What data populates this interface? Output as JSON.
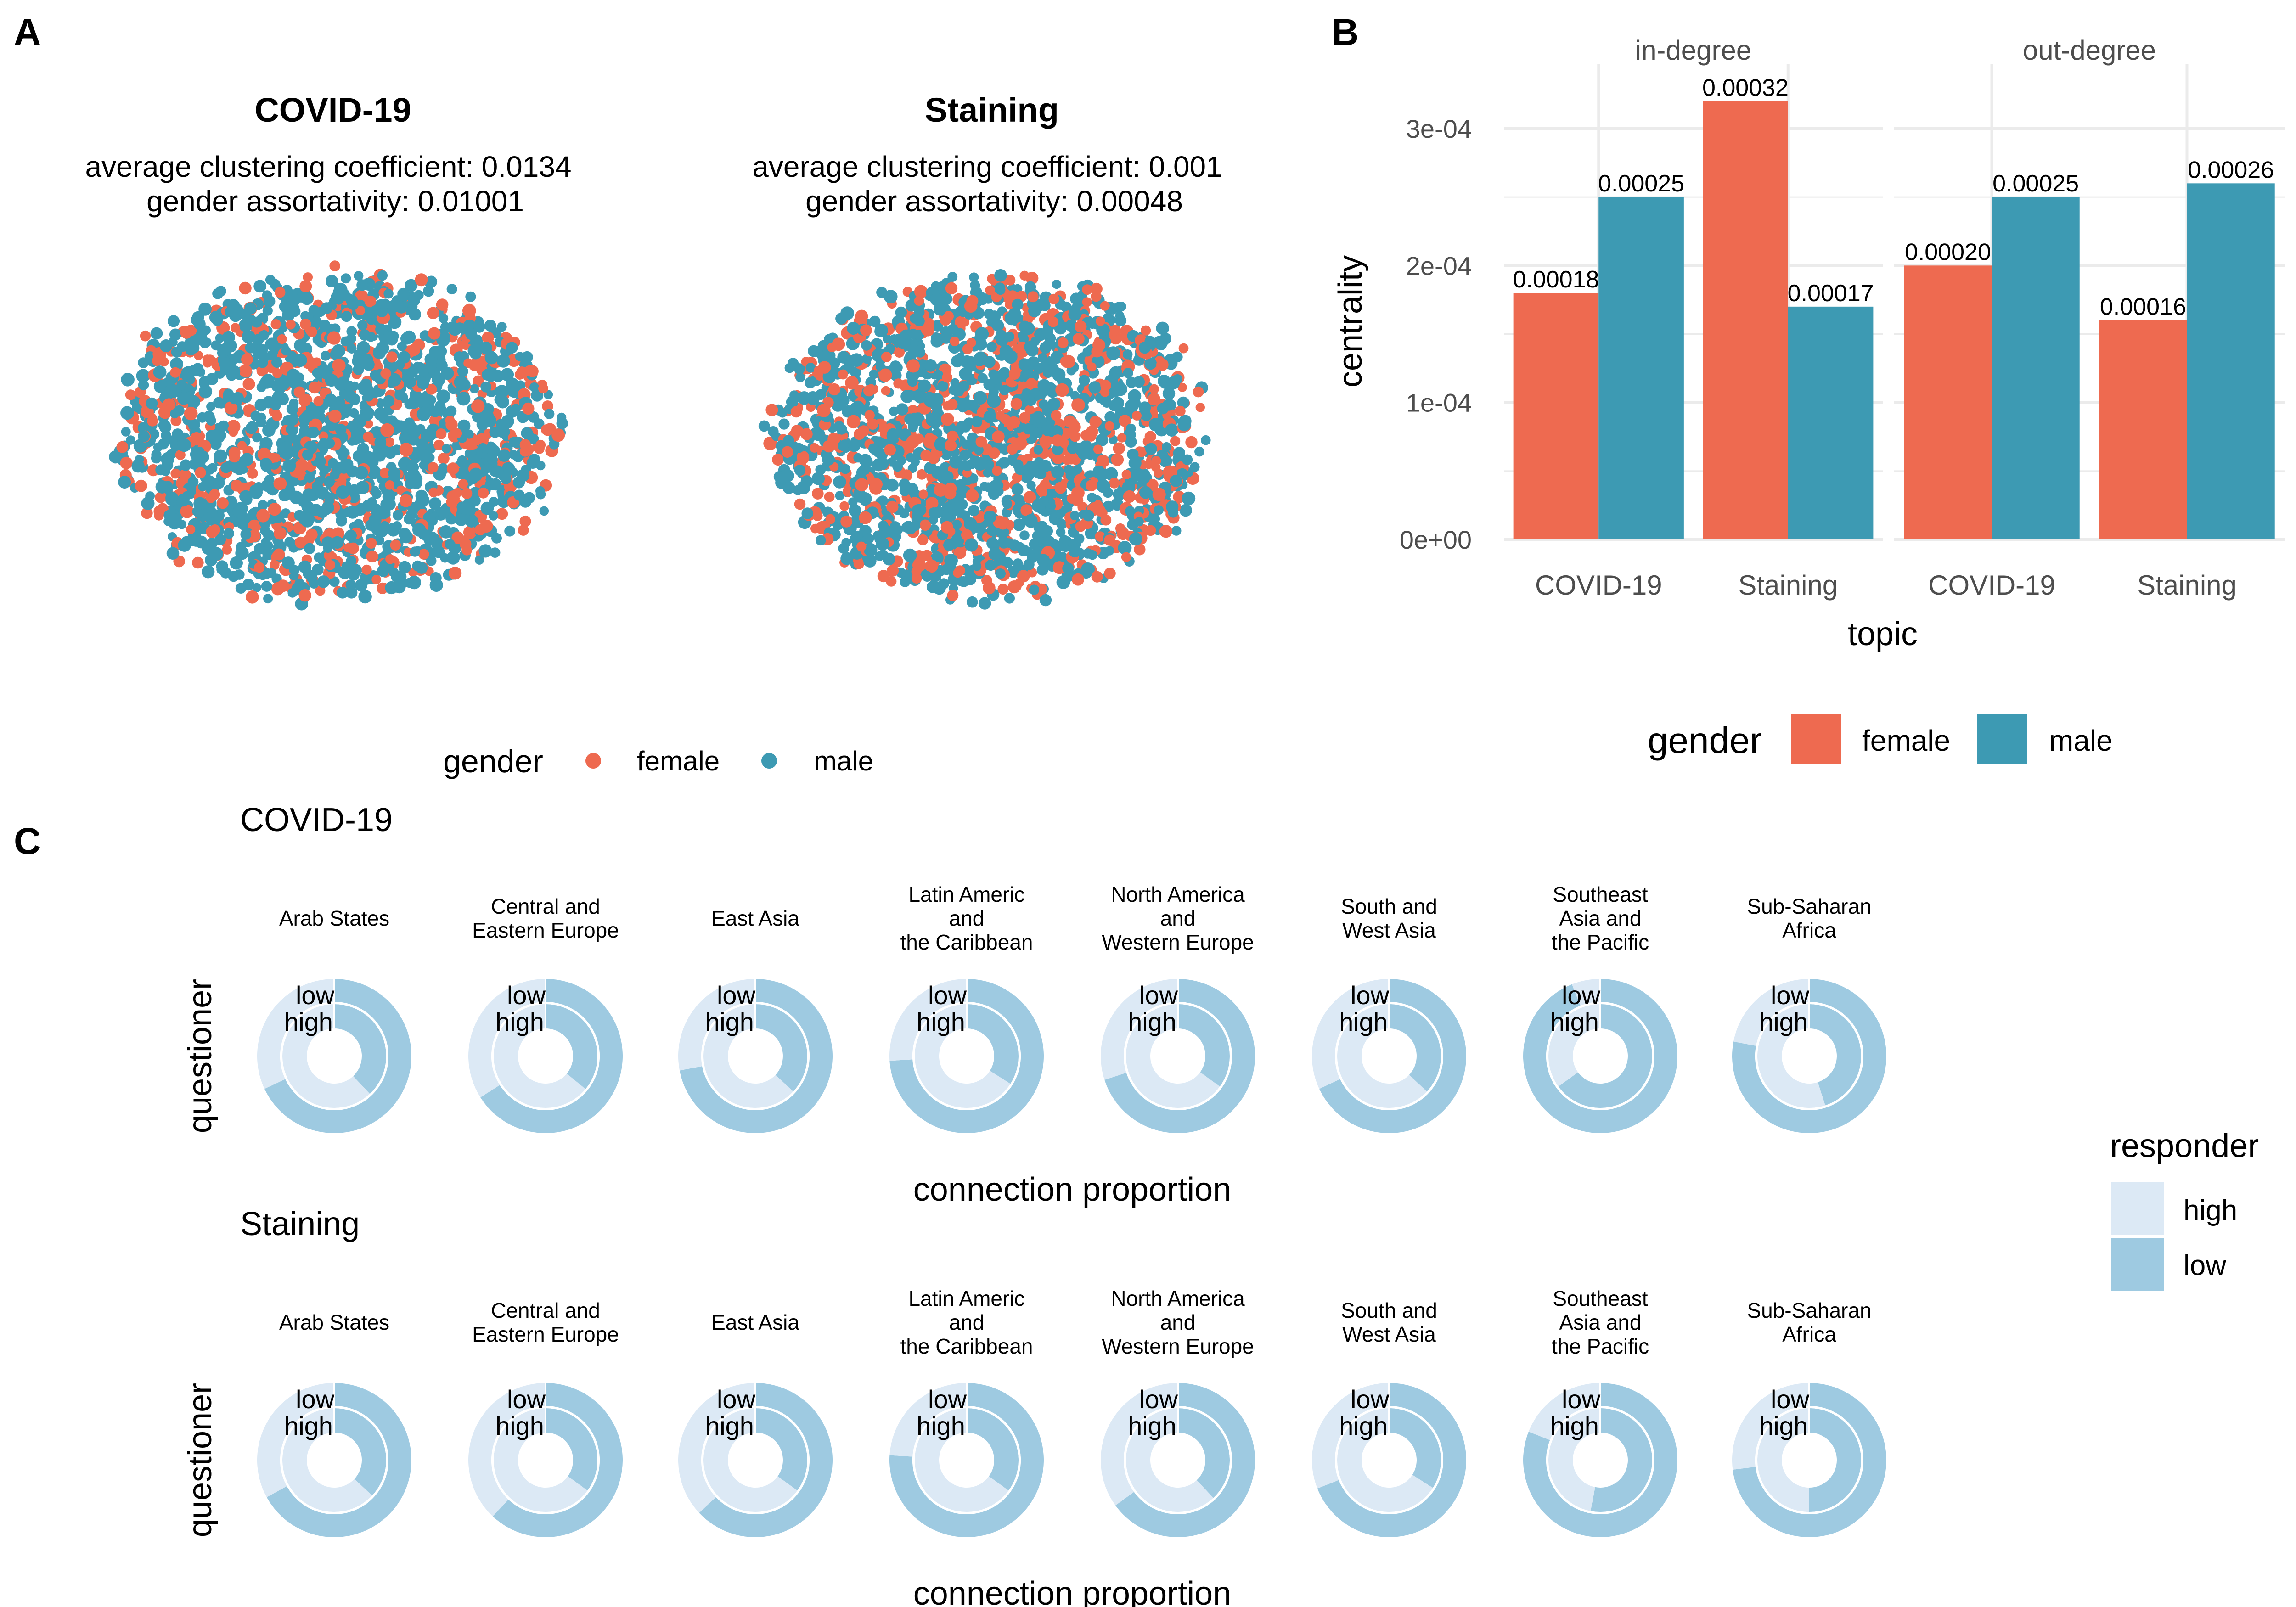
{
  "panel_labels": {
    "a": "A",
    "b": "B",
    "c": "C"
  },
  "colors": {
    "female": "#EE6A50",
    "male": "#3D9AB3",
    "high": "#DCE9F5",
    "low": "#9ECAE1"
  },
  "networks": [
    {
      "title": "COVID-19",
      "line1": "average clustering coefficient: 0.0134",
      "line2": "gender assortativity: 0.01001",
      "female_share": 0.28
    },
    {
      "title": "Staining",
      "line1": "average clustering coefficient: 0.001",
      "line2": "gender assortativity: 0.00048",
      "female_share": 0.36
    }
  ],
  "legend_a": {
    "title": "gender",
    "female": "female",
    "male": "male"
  },
  "legend_b": {
    "title": "gender",
    "female": "female",
    "male": "male"
  },
  "chart_data": [
    {
      "type": "bar",
      "facets": [
        "in-degree",
        "out-degree"
      ],
      "categories": [
        "COVID-19",
        "Staining"
      ],
      "xlabel": "topic",
      "ylabel": "centrality",
      "ylim": [
        0,
        0.00034
      ],
      "yticks": [
        "0e+00",
        "1e-04",
        "2e-04",
        "3e-04"
      ],
      "ytick_values": [
        0,
        0.0001,
        0.0002,
        0.0003
      ],
      "grid": true,
      "legend": "bottom",
      "series": [
        {
          "name": "female",
          "facet_values": [
            [
              0.00018,
              0.00032
            ],
            [
              0.0002,
              0.00016
            ]
          ],
          "labels": [
            [
              "0.00018",
              "0.00032"
            ],
            [
              "0.00020",
              "0.00016"
            ]
          ]
        },
        {
          "name": "male",
          "facet_values": [
            [
              0.00025,
              0.00017
            ],
            [
              0.00025,
              0.00026
            ]
          ],
          "labels": [
            [
              "0.00025",
              "0.00017"
            ],
            [
              "0.00025",
              "0.00026"
            ]
          ]
        }
      ]
    },
    {
      "type": "pie",
      "subtype": "nested-donut",
      "xlabel": "connection proportion",
      "ylabel": "questioner",
      "ring_labels": [
        "low",
        "high"
      ],
      "legend": {
        "title": "responder",
        "items": [
          "high",
          "low"
        ]
      },
      "regions": [
        [
          "Arab States"
        ],
        [
          "Central and",
          "Eastern Europe"
        ],
        [
          "East Asia"
        ],
        [
          "Latin Americ",
          "and",
          "the Caribbean"
        ],
        [
          "North America",
          "and",
          "Western Europe"
        ],
        [
          "South and",
          "West Asia"
        ],
        [
          "Southeast",
          "Asia and",
          "the Pacific"
        ],
        [
          "Sub-Saharan",
          "Africa"
        ]
      ],
      "rows": [
        {
          "topic": "COVID-19",
          "outer_low_share": [
            0.68,
            0.66,
            0.72,
            0.74,
            0.7,
            0.68,
            0.94,
            0.78
          ],
          "inner_low_share": [
            0.38,
            0.36,
            0.37,
            0.34,
            0.35,
            0.37,
            0.65,
            0.45
          ]
        },
        {
          "topic": "Staining",
          "outer_low_share": [
            0.67,
            0.62,
            0.63,
            0.76,
            0.65,
            0.69,
            0.81,
            0.73
          ],
          "inner_low_share": [
            0.37,
            0.35,
            0.35,
            0.35,
            0.38,
            0.34,
            0.53,
            0.5
          ]
        }
      ]
    }
  ]
}
